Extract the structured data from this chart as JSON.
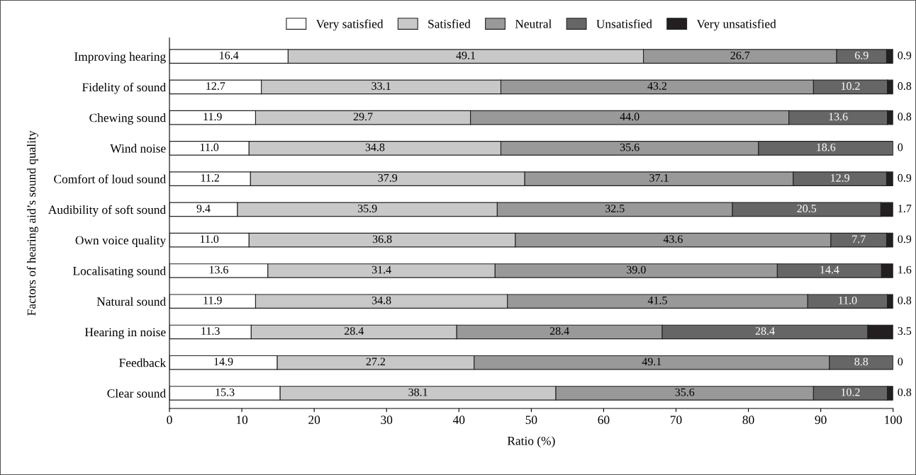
{
  "chart_data": {
    "type": "bar",
    "orientation": "horizontal",
    "stacked": true,
    "xlabel": "Ratio (%)",
    "ylabel": "Factors of hearing aid’s sound quality",
    "categories": [
      "Improving hearing",
      "Fidelity of sound",
      "Chewing sound",
      "Wind noise",
      "Comfort of loud sound",
      "Audibility of soft sound",
      "Own voice quality",
      "Localisating sound",
      "Natural sound",
      "Hearing in noise",
      "Feedback",
      "Clear sound"
    ],
    "series": [
      {
        "name": "Very satisfied",
        "color": "#ffffff",
        "values": [
          16.4,
          12.7,
          11.9,
          11.0,
          11.2,
          9.4,
          11.0,
          13.6,
          11.9,
          11.3,
          14.9,
          15.3
        ],
        "value_labels": [
          "16.4",
          "12.7",
          "11.9",
          "11.0",
          "11.2",
          "9.4",
          "11.0",
          "13.6",
          "11.9",
          "11.3",
          "14.9",
          "15.3"
        ]
      },
      {
        "name": "Satisfied",
        "color": "#c8c8c8",
        "values": [
          49.1,
          33.1,
          29.7,
          34.8,
          37.9,
          35.9,
          36.8,
          31.4,
          34.8,
          28.4,
          27.2,
          38.1
        ],
        "value_labels": [
          "49.1",
          "33.1",
          "29.7",
          "34.8",
          "37.9",
          "35.9",
          "36.8",
          "31.4",
          "34.8",
          "28.4",
          "27.2",
          "38.1"
        ]
      },
      {
        "name": "Neutral",
        "color": "#999999",
        "values": [
          26.7,
          43.2,
          44.0,
          35.6,
          37.1,
          32.5,
          43.6,
          39.0,
          41.5,
          28.4,
          49.1,
          35.6
        ],
        "value_labels": [
          "26.7",
          "43.2",
          "44.0",
          "35.6",
          "37.1",
          "32.5",
          "43.6",
          "39.0",
          "41.5",
          "28.4",
          "49.1",
          "35.6"
        ]
      },
      {
        "name": "Unsatisfied",
        "color": "#666666",
        "values": [
          6.9,
          10.2,
          13.6,
          18.6,
          12.9,
          20.5,
          7.7,
          14.4,
          11.0,
          28.4,
          8.8,
          10.2
        ],
        "value_labels": [
          "6.9",
          "10.2",
          "13.6",
          "18.6",
          "12.9",
          "20.5",
          "7.7",
          "14.4",
          "11.0",
          "28.4",
          "8.8",
          "10.2"
        ]
      },
      {
        "name": "Very unsatisfied",
        "color": "#231f20",
        "values": [
          0.9,
          0.8,
          0.8,
          0,
          0.9,
          1.7,
          0.9,
          1.6,
          0.8,
          3.5,
          0,
          0.8
        ],
        "value_labels": [
          "0.9",
          "0.8",
          "0.8",
          "0",
          "0.9",
          "1.7",
          "0.9",
          "1.6",
          "0.8",
          "3.5",
          "0",
          "0.8"
        ]
      }
    ],
    "xlim": [
      0,
      100
    ],
    "xticks": [
      0,
      10,
      20,
      30,
      40,
      50,
      60,
      70,
      80,
      90,
      100
    ],
    "grid": false,
    "legend": "top"
  }
}
